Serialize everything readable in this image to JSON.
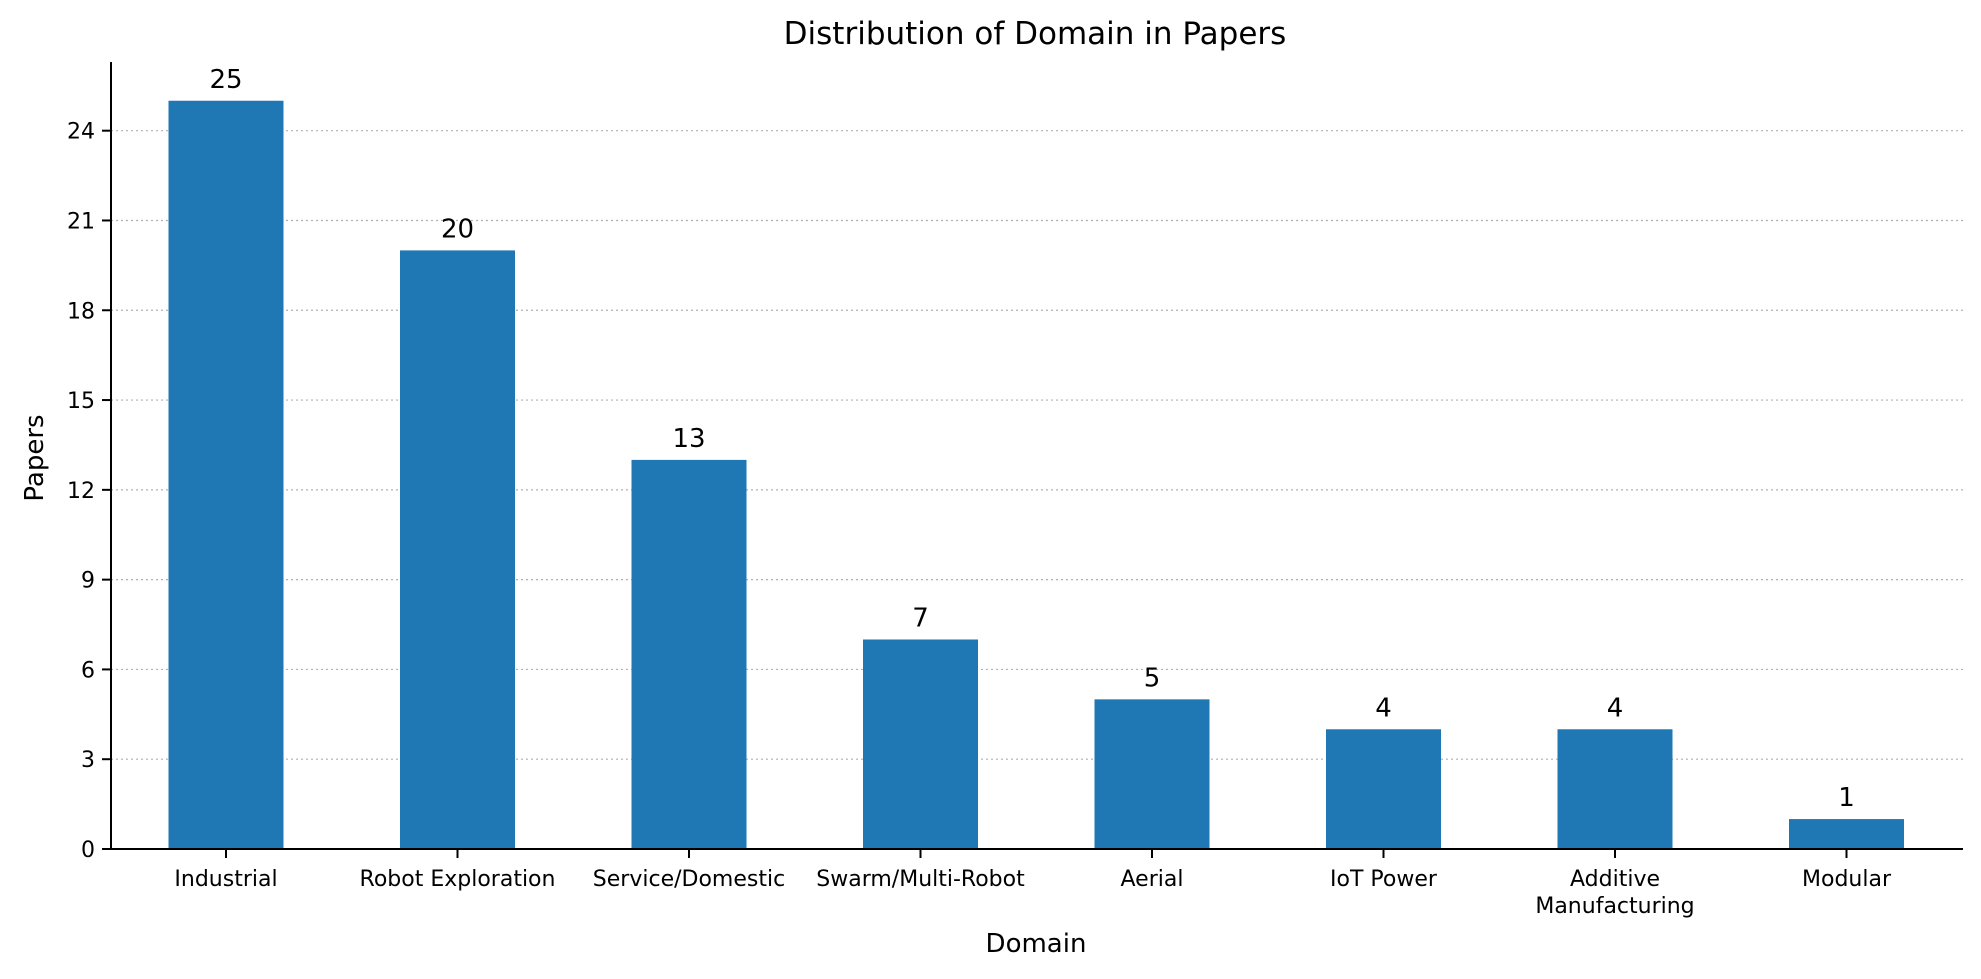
{
  "chart_data": {
    "type": "bar",
    "title": "Distribution of Domain in Papers",
    "xlabel": "Domain",
    "ylabel": "Papers",
    "categories": [
      [
        "Industrial"
      ],
      [
        "Robot Exploration"
      ],
      [
        "Service/Domestic"
      ],
      [
        "Swarm/Multi-Robot"
      ],
      [
        "Aerial"
      ],
      [
        "IoT Power"
      ],
      [
        "Additive",
        "Manufacturing"
      ],
      [
        "Modular"
      ]
    ],
    "values": [
      25,
      20,
      13,
      7,
      5,
      4,
      4,
      1
    ],
    "value_labels": [
      "25",
      "20",
      "13",
      "7",
      "5",
      "4",
      "4",
      "1"
    ],
    "ylim": [
      0,
      26.3
    ],
    "yticks": [
      0,
      3,
      6,
      9,
      12,
      15,
      18,
      21,
      24
    ],
    "ytick_labels": [
      "0",
      "3",
      "6",
      "9",
      "12",
      "15",
      "18",
      "21",
      "24"
    ],
    "grid": "y-dotted",
    "bar_color": "#1f77b4",
    "grid_color": "#b0b0b0"
  }
}
